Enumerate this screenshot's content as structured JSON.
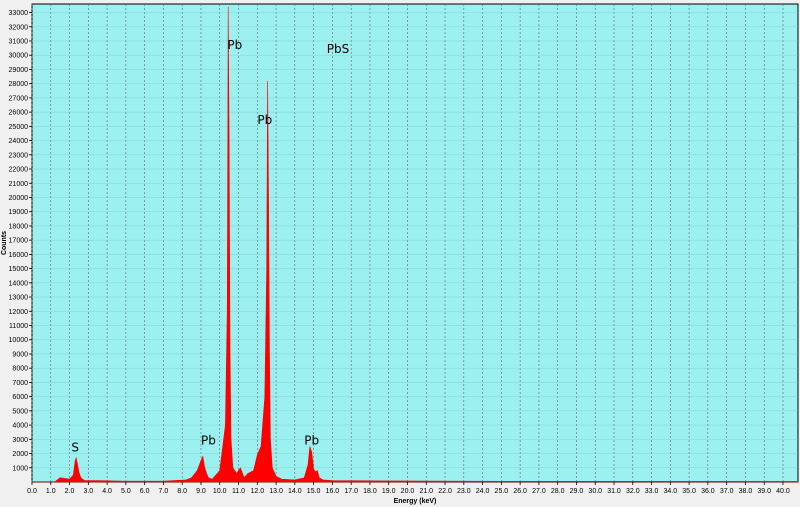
{
  "chart_data": {
    "type": "area",
    "title": "PbS",
    "xlabel": "Energy (keV)",
    "ylabel": "Counts",
    "xlim": [
      0,
      40.8
    ],
    "ylim": [
      0,
      33600
    ],
    "grid": true,
    "background_color": "#9cf0f0",
    "series_color": "#ff0000",
    "x_ticks": [
      "0.0",
      "1.0",
      "2.0",
      "3.0",
      "4.0",
      "5.0",
      "6.0",
      "7.0",
      "8.0",
      "9.0",
      "10.0",
      "11.0",
      "12.0",
      "13.0",
      "14.0",
      "15.0",
      "16.0",
      "17.0",
      "18.0",
      "19.0",
      "20.0",
      "21.0",
      "22.0",
      "23.0",
      "24.0",
      "25.0",
      "26.0",
      "27.0",
      "28.0",
      "29.0",
      "30.0",
      "31.0",
      "32.0",
      "33.0",
      "34.0",
      "35.0",
      "36.0",
      "37.0",
      "38.0",
      "39.0",
      "40.0"
    ],
    "y_ticks": [
      "1000",
      "2000",
      "3000",
      "4000",
      "5000",
      "6000",
      "7000",
      "8000",
      "9000",
      "10000",
      "11000",
      "12000",
      "13000",
      "14000",
      "15000",
      "16000",
      "17000",
      "18000",
      "19000",
      "20000",
      "21000",
      "22000",
      "23000",
      "24000",
      "25000",
      "26000",
      "27000",
      "28000",
      "29000",
      "30000",
      "31000",
      "32000",
      "33000"
    ],
    "series": [
      {
        "x": [
          0.0,
          0.8,
          1.2,
          1.5,
          2.0,
          2.2,
          2.3,
          2.35,
          2.4,
          2.5,
          2.6,
          2.8,
          3.5,
          5.0,
          7.0,
          8.2,
          8.5,
          8.8,
          9.0,
          9.1,
          9.2,
          9.3,
          9.4,
          9.6,
          10.0,
          10.3,
          10.4,
          10.45,
          10.5,
          10.55,
          10.6,
          10.7,
          10.9,
          11.1,
          11.3,
          11.5,
          11.8,
          12.0,
          12.2,
          12.4,
          12.5,
          12.55,
          12.6,
          12.65,
          12.7,
          12.8,
          13.0,
          13.3,
          14.0,
          14.5,
          14.7,
          14.8,
          14.9,
          15.0,
          15.1,
          15.2,
          15.3,
          15.5,
          16.0,
          18.0,
          25.0,
          40.8
        ],
        "values": [
          0,
          0,
          0,
          300,
          200,
          500,
          1500,
          1700,
          1400,
          700,
          300,
          100,
          100,
          60,
          60,
          150,
          300,
          800,
          1500,
          1800,
          1000,
          600,
          300,
          200,
          800,
          4000,
          12000,
          33400,
          24000,
          9000,
          3000,
          1000,
          600,
          1000,
          300,
          600,
          800,
          1900,
          2500,
          6000,
          15000,
          28200,
          20000,
          9000,
          3000,
          1000,
          400,
          200,
          150,
          300,
          1200,
          2500,
          2100,
          900,
          700,
          800,
          300,
          150,
          100,
          80,
          50,
          40
        ]
      }
    ],
    "annotations": [
      {
        "text": "S",
        "x": 2.3,
        "y": 2150
      },
      {
        "text": "Pb",
        "x": 9.4,
        "y": 2650
      },
      {
        "text": "Pb",
        "x": 10.8,
        "y": 30450
      },
      {
        "text": "Pb",
        "x": 12.4,
        "y": 25150
      },
      {
        "text": "Pb",
        "x": 14.9,
        "y": 2650
      },
      {
        "text": "PbS",
        "x": 16.3,
        "y": 30150
      }
    ]
  }
}
